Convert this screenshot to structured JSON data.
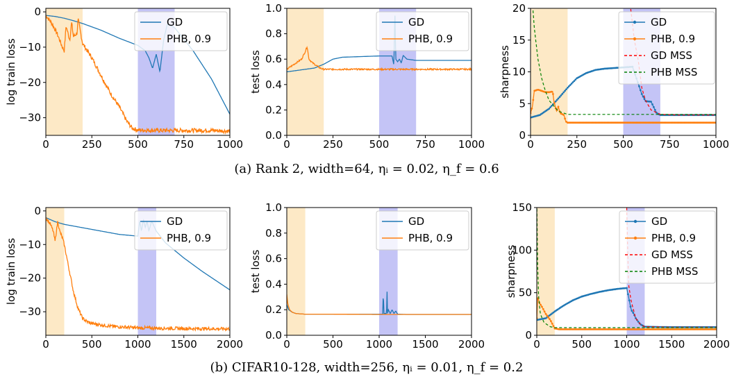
{
  "colors": {
    "gd": "#1f77b4",
    "phb": "#ff7f0e",
    "gd_mss": "#ff0000",
    "phb_mss": "#008000",
    "orange_band": "#fde9c6",
    "blue_band": "#c4c4f6"
  },
  "captions": {
    "a": "(a) Rank 2, width=64, ηᵢ = 0.02, η_f = 0.6",
    "b": "(b) CIFAR10-128, width=256, ηᵢ = 0.01, η_f = 0.2"
  },
  "chart_data": [
    {
      "id": "a-train",
      "type": "line",
      "xlabel": "",
      "ylabel": "log train loss",
      "xlim": [
        0,
        1000
      ],
      "ylim": [
        -35,
        1
      ],
      "xticks": [
        0,
        250,
        500,
        750,
        1000
      ],
      "xtick_labels": [
        "0",
        "250",
        "500",
        "750",
        "1000"
      ],
      "yticks": [
        0,
        -10,
        -20,
        -30
      ],
      "ytick_labels": [
        "0",
        "−10",
        "−20",
        "−30"
      ],
      "bands": [
        {
          "from": 0,
          "to": 200,
          "color": "orange"
        },
        {
          "from": 500,
          "to": 700,
          "color": "blue"
        }
      ],
      "legend": {
        "position": "top-right",
        "entries": [
          "GD",
          "PHB, 0.9"
        ]
      },
      "series": [
        {
          "name": "GD",
          "style": "line",
          "color": "gd",
          "noise": 0,
          "x": [
            0,
            50,
            100,
            150,
            200,
            300,
            400,
            500,
            540,
            560,
            580,
            600,
            620,
            640,
            660,
            700,
            800,
            900,
            1000
          ],
          "y": [
            -1,
            -1.3,
            -1.8,
            -2.5,
            -3.3,
            -5.2,
            -7.5,
            -9.5,
            -11,
            -13,
            -16,
            -12,
            -17,
            -8,
            -3.5,
            -4.5,
            -11,
            -19,
            -29
          ]
        },
        {
          "name": "PHB, 0.9",
          "style": "line",
          "color": "phb",
          "noise": 0.6,
          "x": [
            0,
            30,
            60,
            90,
            100,
            110,
            130,
            140,
            150,
            170,
            175,
            200,
            250,
            300,
            350,
            400,
            440,
            470,
            500,
            600,
            700,
            800,
            900,
            1000
          ],
          "y": [
            -1,
            -3,
            -6,
            -10,
            -11,
            -4,
            -8,
            -3,
            -7,
            -6,
            -2,
            -9,
            -13,
            -18,
            -23,
            -27,
            -31,
            -33,
            -33.5,
            -33.6,
            -33.6,
            -33.6,
            -33.6,
            -33.8
          ]
        }
      ]
    },
    {
      "id": "a-test",
      "type": "line",
      "xlabel": "",
      "ylabel": "test loss",
      "xlim": [
        0,
        1000
      ],
      "ylim": [
        0,
        1
      ],
      "xticks": [
        0,
        250,
        500,
        750,
        1000
      ],
      "xtick_labels": [
        "0",
        "250",
        "500",
        "750",
        "1000"
      ],
      "yticks": [
        0,
        0.2,
        0.4,
        0.6,
        0.8,
        1.0
      ],
      "ytick_labels": [
        "0.0",
        "0.2",
        "0.4",
        "0.6",
        "0.8",
        "1.0"
      ],
      "bands": [
        {
          "from": 0,
          "to": 200,
          "color": "orange"
        },
        {
          "from": 500,
          "to": 700,
          "color": "blue"
        }
      ],
      "legend": {
        "position": "top-right",
        "entries": [
          "GD",
          "PHB, 0.9"
        ]
      },
      "series": [
        {
          "name": "GD",
          "style": "line",
          "color": "gd",
          "noise": 0,
          "x": [
            0,
            50,
            100,
            150,
            200,
            250,
            300,
            400,
            500,
            570,
            580,
            585,
            590,
            600,
            610,
            620,
            630,
            650,
            700,
            800,
            1000
          ],
          "y": [
            0.5,
            0.51,
            0.52,
            0.53,
            0.56,
            0.6,
            0.615,
            0.62,
            0.625,
            0.625,
            0.55,
            1.0,
            0.6,
            0.58,
            0.6,
            0.57,
            0.63,
            0.6,
            0.59,
            0.59,
            0.59
          ]
        },
        {
          "name": "PHB, 0.9",
          "style": "line",
          "color": "phb",
          "noise": 0.006,
          "x": [
            0,
            40,
            80,
            100,
            110,
            120,
            140,
            160,
            180,
            200,
            300,
            500,
            1000
          ],
          "y": [
            0.52,
            0.56,
            0.6,
            0.66,
            0.7,
            0.6,
            0.57,
            0.55,
            0.53,
            0.52,
            0.52,
            0.52,
            0.52
          ]
        }
      ]
    },
    {
      "id": "a-sharp",
      "type": "line",
      "xlabel": "",
      "ylabel": "sharpness",
      "xlim": [
        0,
        1000
      ],
      "ylim": [
        0,
        20
      ],
      "xticks": [
        0,
        250,
        500,
        750,
        1000
      ],
      "xtick_labels": [
        "0",
        "250",
        "500",
        "750",
        "1000"
      ],
      "yticks": [
        0,
        5,
        10,
        15,
        20
      ],
      "ytick_labels": [
        "0",
        "5",
        "10",
        "15",
        "20"
      ],
      "bands": [
        {
          "from": 0,
          "to": 200,
          "color": "orange"
        },
        {
          "from": 500,
          "to": 700,
          "color": "blue"
        }
      ],
      "legend": {
        "position": "top-right",
        "entries": [
          "GD",
          "PHB, 0.9",
          "GD MSS",
          "PHB MSS"
        ]
      },
      "series": [
        {
          "name": "GD",
          "style": "marker",
          "color": "gd",
          "noise": 0,
          "x": [
            0,
            50,
            100,
            150,
            200,
            250,
            300,
            350,
            400,
            450,
            500,
            550,
            600,
            620,
            650,
            680,
            700,
            800,
            1000
          ],
          "y": [
            2.8,
            3.2,
            4.2,
            5.8,
            7.5,
            9,
            9.8,
            10.3,
            10.5,
            10.6,
            10.7,
            10.8,
            6.5,
            5.4,
            5.3,
            3.5,
            3.2,
            3.2,
            3.2
          ]
        },
        {
          "name": "PHB, 0.9",
          "style": "marker",
          "color": "phb",
          "noise": 0,
          "x": [
            0,
            10,
            20,
            40,
            60,
            80,
            100,
            120,
            125,
            140,
            150,
            160,
            180,
            190,
            200,
            300,
            1000
          ],
          "y": [
            3.5,
            4.5,
            7.0,
            7.2,
            7.0,
            6.8,
            6.8,
            6.9,
            5.5,
            3.8,
            4.5,
            3.5,
            3.2,
            2.2,
            2.0,
            2.0,
            2.0
          ]
        },
        {
          "name": "GD MSS",
          "style": "dashed",
          "color": "gd_mss",
          "noise": 0,
          "x": [
            540,
            560,
            580,
            600,
            620,
            650,
            700,
            800,
            1000
          ],
          "y": [
            20,
            15,
            12,
            7.5,
            5.5,
            4,
            3.3,
            3.2,
            3.2
          ]
        },
        {
          "name": "PHB MSS",
          "style": "dashed",
          "color": "phb_mss",
          "noise": 0,
          "x": [
            0,
            20,
            40,
            60,
            80,
            100,
            150,
            200,
            1000
          ],
          "y": [
            25,
            17,
            12,
            9,
            7,
            5.5,
            3.8,
            3.3,
            3.3
          ]
        }
      ]
    },
    {
      "id": "b-train",
      "type": "line",
      "xlabel": "",
      "ylabel": "log train loss",
      "xlim": [
        0,
        2000
      ],
      "ylim": [
        -37,
        1
      ],
      "xticks": [
        0,
        500,
        1000,
        1500,
        2000
      ],
      "xtick_labels": [
        "0",
        "500",
        "1000",
        "1500",
        "2000"
      ],
      "yticks": [
        0,
        -10,
        -20,
        -30
      ],
      "ytick_labels": [
        "0",
        "−10",
        "−20",
        "−30"
      ],
      "bands": [
        {
          "from": 0,
          "to": 200,
          "color": "orange"
        },
        {
          "from": 1000,
          "to": 1200,
          "color": "blue"
        }
      ],
      "legend": {
        "position": "top-right",
        "entries": [
          "GD",
          "PHB, 0.9"
        ]
      },
      "series": [
        {
          "name": "GD",
          "style": "line",
          "color": "gd",
          "noise": 0,
          "x": [
            0,
            100,
            200,
            400,
            600,
            800,
            1000,
            1020,
            1040,
            1060,
            1080,
            1100,
            1120,
            1150,
            1200,
            1300,
            1500,
            1700,
            2000
          ],
          "y": [
            -2,
            -3.2,
            -4,
            -5,
            -6,
            -7,
            -7.5,
            -3,
            -6,
            -2.5,
            -5,
            -3,
            -6,
            -3,
            -6,
            -9.5,
            -14,
            -18,
            -23.5
          ]
        },
        {
          "name": "PHB, 0.9",
          "style": "line",
          "color": "phb",
          "noise": 0.5,
          "x": [
            0,
            50,
            80,
            100,
            130,
            150,
            180,
            200,
            250,
            300,
            350,
            400,
            450,
            500,
            700,
            1000,
            1500,
            2000
          ],
          "y": [
            -2,
            -4,
            -6,
            -9,
            -3,
            -6,
            -8,
            -10,
            -17,
            -24,
            -29,
            -32,
            -33,
            -33.5,
            -34.3,
            -34.8,
            -35,
            -35.1
          ]
        }
      ]
    },
    {
      "id": "b-test",
      "type": "line",
      "xlabel": "",
      "ylabel": "test loss",
      "xlim": [
        0,
        2000
      ],
      "ylim": [
        0,
        1
      ],
      "xticks": [
        0,
        500,
        1000,
        1500,
        2000
      ],
      "xtick_labels": [
        "0",
        "500",
        "1000",
        "1500",
        "2000"
      ],
      "yticks": [
        0,
        0.2,
        0.4,
        0.6,
        0.8,
        1.0
      ],
      "ytick_labels": [
        "0.0",
        "0.2",
        "0.4",
        "0.6",
        "0.8",
        "1.0"
      ],
      "bands": [
        {
          "from": 0,
          "to": 200,
          "color": "orange"
        },
        {
          "from": 1000,
          "to": 1200,
          "color": "blue"
        }
      ],
      "legend": {
        "position": "top-right",
        "entries": [
          "GD",
          "PHB, 0.9"
        ]
      },
      "series": [
        {
          "name": "GD",
          "style": "line",
          "color": "gd",
          "noise": 0,
          "x": [
            0,
            20,
            60,
            100,
            200,
            500,
            1000,
            1040,
            1045,
            1050,
            1080,
            1085,
            1090,
            1100,
            1120,
            1140,
            1160,
            1180,
            1200,
            1300,
            2000
          ],
          "y": [
            0.24,
            0.2,
            0.18,
            0.17,
            0.165,
            0.165,
            0.165,
            0.165,
            0.38,
            0.17,
            0.17,
            0.37,
            0.17,
            0.2,
            0.17,
            0.2,
            0.17,
            0.19,
            0.165,
            0.163,
            0.163
          ]
        },
        {
          "name": "PHB, 0.9",
          "style": "line",
          "color": "phb",
          "noise": 0,
          "x": [
            0,
            10,
            30,
            60,
            100,
            200,
            500,
            1000,
            2000
          ],
          "y": [
            0.32,
            0.25,
            0.2,
            0.18,
            0.17,
            0.165,
            0.165,
            0.163,
            0.163
          ]
        }
      ]
    },
    {
      "id": "b-sharp",
      "type": "line",
      "xlabel": "",
      "ylabel": "sharpness",
      "xlim": [
        0,
        2000
      ],
      "ylim": [
        0,
        150
      ],
      "xticks": [
        0,
        500,
        1000,
        1500,
        2000
      ],
      "xtick_labels": [
        "0",
        "500",
        "1000",
        "1500",
        "2000"
      ],
      "yticks": [
        0,
        50,
        100,
        150
      ],
      "ytick_labels": [
        "0",
        "50",
        "100",
        "150"
      ],
      "bands": [
        {
          "from": 0,
          "to": 200,
          "color": "orange"
        },
        {
          "from": 1000,
          "to": 1200,
          "color": "blue"
        }
      ],
      "legend": {
        "position": "top-right",
        "entries": [
          "GD",
          "PHB, 0.9",
          "GD MSS",
          "PHB MSS"
        ]
      },
      "series": [
        {
          "name": "GD",
          "style": "marker",
          "color": "gd",
          "noise": 0,
          "x": [
            0,
            100,
            200,
            300,
            400,
            500,
            600,
            700,
            800,
            900,
            1000,
            1050,
            1080,
            1100,
            1150,
            1200,
            1500,
            2000
          ],
          "y": [
            18,
            20,
            28,
            35,
            41,
            45.5,
            48.5,
            51,
            53,
            54.5,
            55.5,
            30,
            25,
            20,
            13,
            10,
            9.5,
            9.5
          ]
        },
        {
          "name": "PHB, 0.9",
          "style": "marker",
          "color": "phb",
          "noise": 0,
          "x": [
            0,
            10,
            30,
            60,
            100,
            150,
            200,
            250,
            500,
            1000,
            2000
          ],
          "y": [
            20,
            45,
            38,
            33,
            25,
            18,
            8,
            7,
            7,
            7,
            7
          ]
        },
        {
          "name": "GD MSS",
          "style": "dashed",
          "color": "gd_mss",
          "noise": 0,
          "x": [
            1000,
            1020,
            1050,
            1080,
            1100,
            1150,
            1200,
            1500,
            2000
          ],
          "y": [
            150,
            60,
            40,
            28,
            20,
            13,
            10,
            9.5,
            9.5
          ]
        },
        {
          "name": "PHB MSS",
          "style": "dashed",
          "color": "phb_mss",
          "noise": 0,
          "x": [
            0,
            10,
            20,
            40,
            80,
            150,
            200,
            1000,
            2000
          ],
          "y": [
            160,
            80,
            45,
            25,
            15,
            10,
            9,
            9,
            9
          ]
        }
      ]
    }
  ]
}
